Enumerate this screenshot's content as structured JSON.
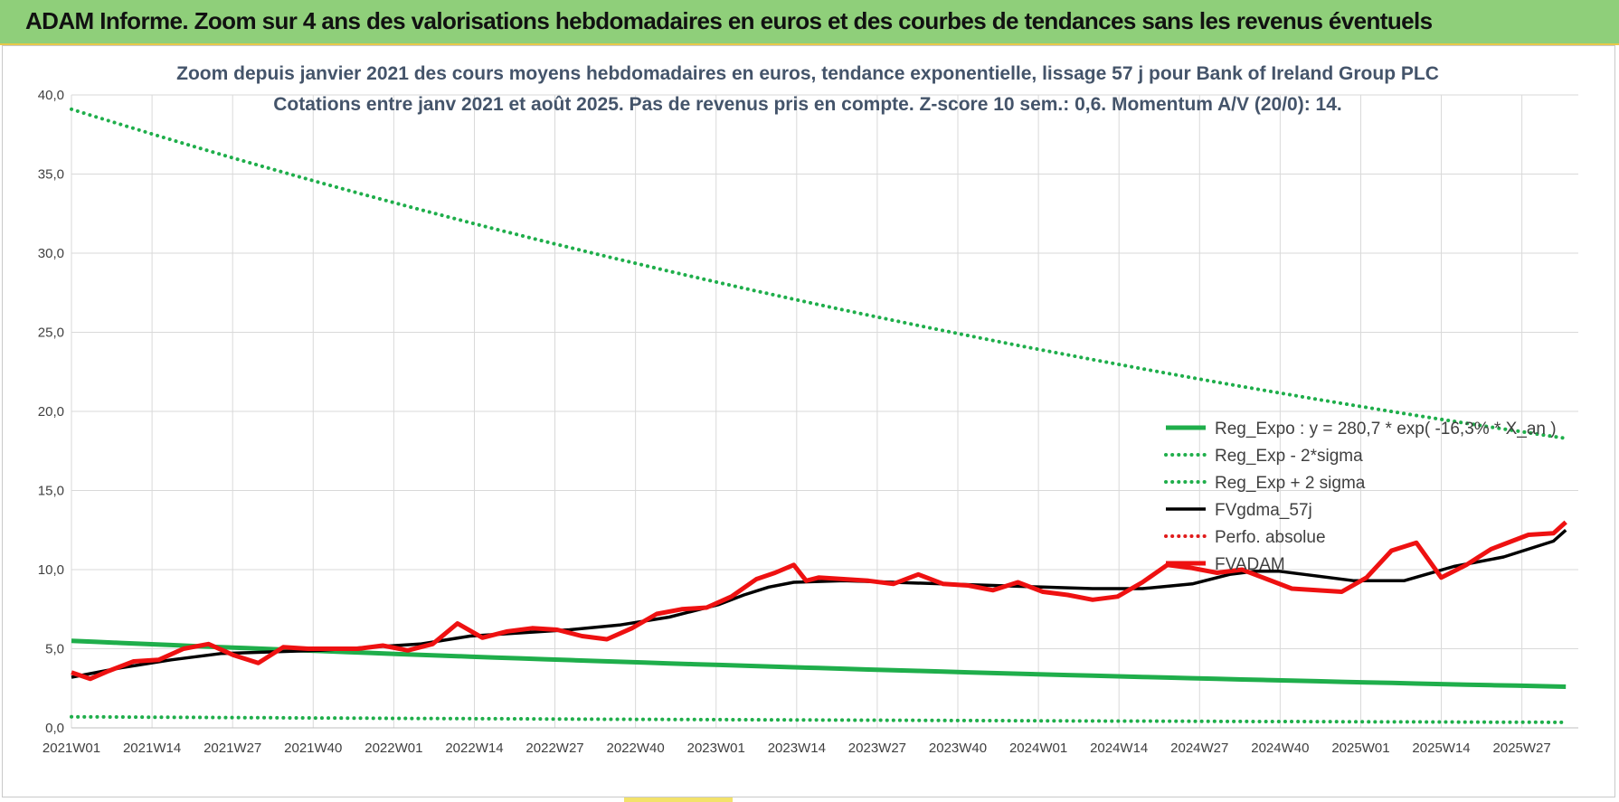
{
  "banner": {
    "title": "ADAM Informe. Zoom sur 4 ans des valorisations hebdomadaires en euros et des courbes de tendances sans les revenus éventuels"
  },
  "colors": {
    "banner_bg": "#8fcf7a",
    "green": "#1fae4b",
    "red": "#ee1111",
    "black": "#000000",
    "dotted_red": "#e01b1b"
  },
  "chart_data": {
    "type": "line",
    "title": "Zoom depuis janvier 2021 des cours moyens hebdomadaires en euros, tendance exponentielle, lissage 57 j pour Bank of Ireland Group PLC",
    "subtitle": "Cotations entre janv 2021 et août 2025.  Pas de revenus pris en compte. Z-score 10 sem.: 0,6. Momentum A/V (20/0): 14.",
    "ylim": [
      0,
      40
    ],
    "grid": true,
    "legend_position": "right",
    "y_ticks": [
      "0,0",
      "5,0",
      "10,0",
      "15,0",
      "20,0",
      "25,0",
      "30,0",
      "35,0",
      "40,0"
    ],
    "x_ticks": [
      "2021W01",
      "2021W14",
      "2021W27",
      "2021W40",
      "2022W01",
      "2022W14",
      "2022W27",
      "2022W40",
      "2023W01",
      "2023W14",
      "2023W27",
      "2023W40",
      "2024W01",
      "2024W14",
      "2024W27",
      "2024W40",
      "2025W01",
      "2025W14",
      "2025W27"
    ],
    "x_index_range": [
      0,
      242
    ],
    "series": [
      {
        "name": "Reg_Expo : y = 280,7 * exp( -16,3% * X_an )",
        "style": "solid",
        "color": "#1fae4b",
        "x": [
          0,
          240
        ],
        "y": [
          5.5,
          2.6
        ]
      },
      {
        "name": "Reg_Exp - 2*sigma",
        "style": "dotted",
        "color": "#1fae4b",
        "x": [
          0,
          240
        ],
        "y": [
          0.7,
          0.35
        ]
      },
      {
        "name": "Reg_Exp + 2 sigma",
        "style": "dotted",
        "color": "#1fae4b",
        "x": [
          0,
          240
        ],
        "y": [
          39.1,
          18.3
        ]
      },
      {
        "name": "FVgdma_57j",
        "style": "solid",
        "color": "#000000",
        "x": [
          0,
          8,
          16,
          24,
          32,
          40,
          48,
          56,
          64,
          72,
          80,
          88,
          96,
          104,
          108,
          112,
          116,
          124,
          132,
          140,
          148,
          156,
          164,
          172,
          180,
          186,
          190,
          194,
          198,
          206,
          214,
          222,
          230,
          238,
          240
        ],
        "y": [
          3.2,
          3.8,
          4.3,
          4.7,
          4.8,
          4.9,
          5.1,
          5.3,
          5.8,
          6.0,
          6.2,
          6.5,
          7.0,
          7.8,
          8.4,
          8.9,
          9.2,
          9.3,
          9.2,
          9.1,
          9.0,
          8.9,
          8.8,
          8.8,
          9.1,
          9.7,
          9.9,
          9.9,
          9.7,
          9.3,
          9.3,
          10.2,
          10.8,
          11.8,
          12.5
        ]
      },
      {
        "name": "Perfo. absolue",
        "style": "dotted",
        "color": "#e01b1b",
        "x": [],
        "y": []
      },
      {
        "name": "FVADAM",
        "style": "solid",
        "color": "#ee1111",
        "x": [
          0,
          3,
          6,
          10,
          14,
          18,
          22,
          26,
          30,
          34,
          38,
          42,
          46,
          50,
          54,
          58,
          62,
          66,
          70,
          74,
          78,
          82,
          86,
          90,
          94,
          98,
          102,
          106,
          110,
          113,
          116,
          118,
          120,
          124,
          128,
          132,
          136,
          140,
          144,
          148,
          152,
          156,
          160,
          164,
          168,
          172,
          176,
          180,
          184,
          188,
          192,
          196,
          200,
          204,
          208,
          212,
          216,
          220,
          224,
          226,
          228,
          230,
          234,
          238,
          240
        ],
        "y": [
          3.5,
          3.1,
          3.6,
          4.2,
          4.3,
          5.0,
          5.3,
          4.6,
          4.1,
          5.1,
          5.0,
          5.0,
          5.0,
          5.2,
          4.9,
          5.3,
          6.6,
          5.7,
          6.1,
          6.3,
          6.2,
          5.8,
          5.6,
          6.3,
          7.2,
          7.5,
          7.6,
          8.3,
          9.4,
          9.8,
          10.3,
          9.3,
          9.5,
          9.4,
          9.3,
          9.1,
          9.7,
          9.1,
          9.0,
          8.7,
          9.2,
          8.6,
          8.4,
          8.1,
          8.3,
          9.2,
          10.3,
          10.1,
          9.8,
          10.0,
          9.4,
          8.8,
          8.7,
          8.6,
          9.5,
          11.2,
          11.7,
          9.5,
          10.3,
          10.8,
          11.3,
          11.6,
          12.2,
          12.3,
          13.0
        ]
      }
    ]
  }
}
